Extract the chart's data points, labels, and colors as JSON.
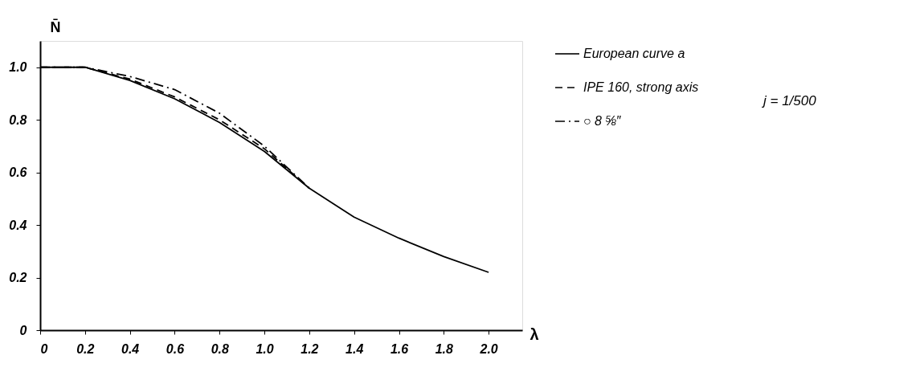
{
  "chart_data": {
    "type": "line",
    "xlabel": "λ",
    "ylabel": "N̄",
    "xlim": [
      0,
      2.15
    ],
    "ylim": [
      0,
      1.1
    ],
    "xticks": [
      0,
      0.2,
      0.4,
      0.6,
      0.8,
      {
        "value": 1,
        "label": "1.0"
      },
      1.2,
      1.4,
      1.6,
      1.8,
      {
        "value": 2,
        "label": "2.0"
      }
    ],
    "yticks": [
      0,
      0.2,
      0.4,
      0.6,
      0.8,
      {
        "value": 1,
        "label": "1.0"
      }
    ],
    "grid": false,
    "legend": "right",
    "marker": "none",
    "annotations": [
      {
        "text": "j = 1/500"
      }
    ],
    "series": [
      {
        "name": "European curve a",
        "color": "#000000",
        "line_style": "solid",
        "x": [
          0,
          0.2,
          0.4,
          0.6,
          0.8,
          1.0,
          1.2,
          1.4,
          1.6,
          1.8,
          2.0
        ],
        "values": [
          1.0,
          1.0,
          0.95,
          0.88,
          0.79,
          0.68,
          0.54,
          0.43,
          0.35,
          0.28,
          0.22
        ]
      },
      {
        "name": "IPE 160, strong axis",
        "color": "#000000",
        "line_style": "dashed",
        "x": [
          0,
          0.2,
          0.4,
          0.6,
          0.8,
          1.0,
          1.2
        ],
        "values": [
          1.0,
          1.0,
          0.955,
          0.887,
          0.8,
          0.69,
          0.54
        ]
      },
      {
        "name": "○ 8 ⅝″",
        "color": "#000000",
        "line_style": "dashdot",
        "x": [
          0,
          0.2,
          0.4,
          0.6,
          0.8,
          1.0,
          1.1,
          1.2
        ],
        "values": [
          1.0,
          1.0,
          0.965,
          0.915,
          0.825,
          0.7,
          0.62,
          0.54
        ]
      }
    ]
  }
}
